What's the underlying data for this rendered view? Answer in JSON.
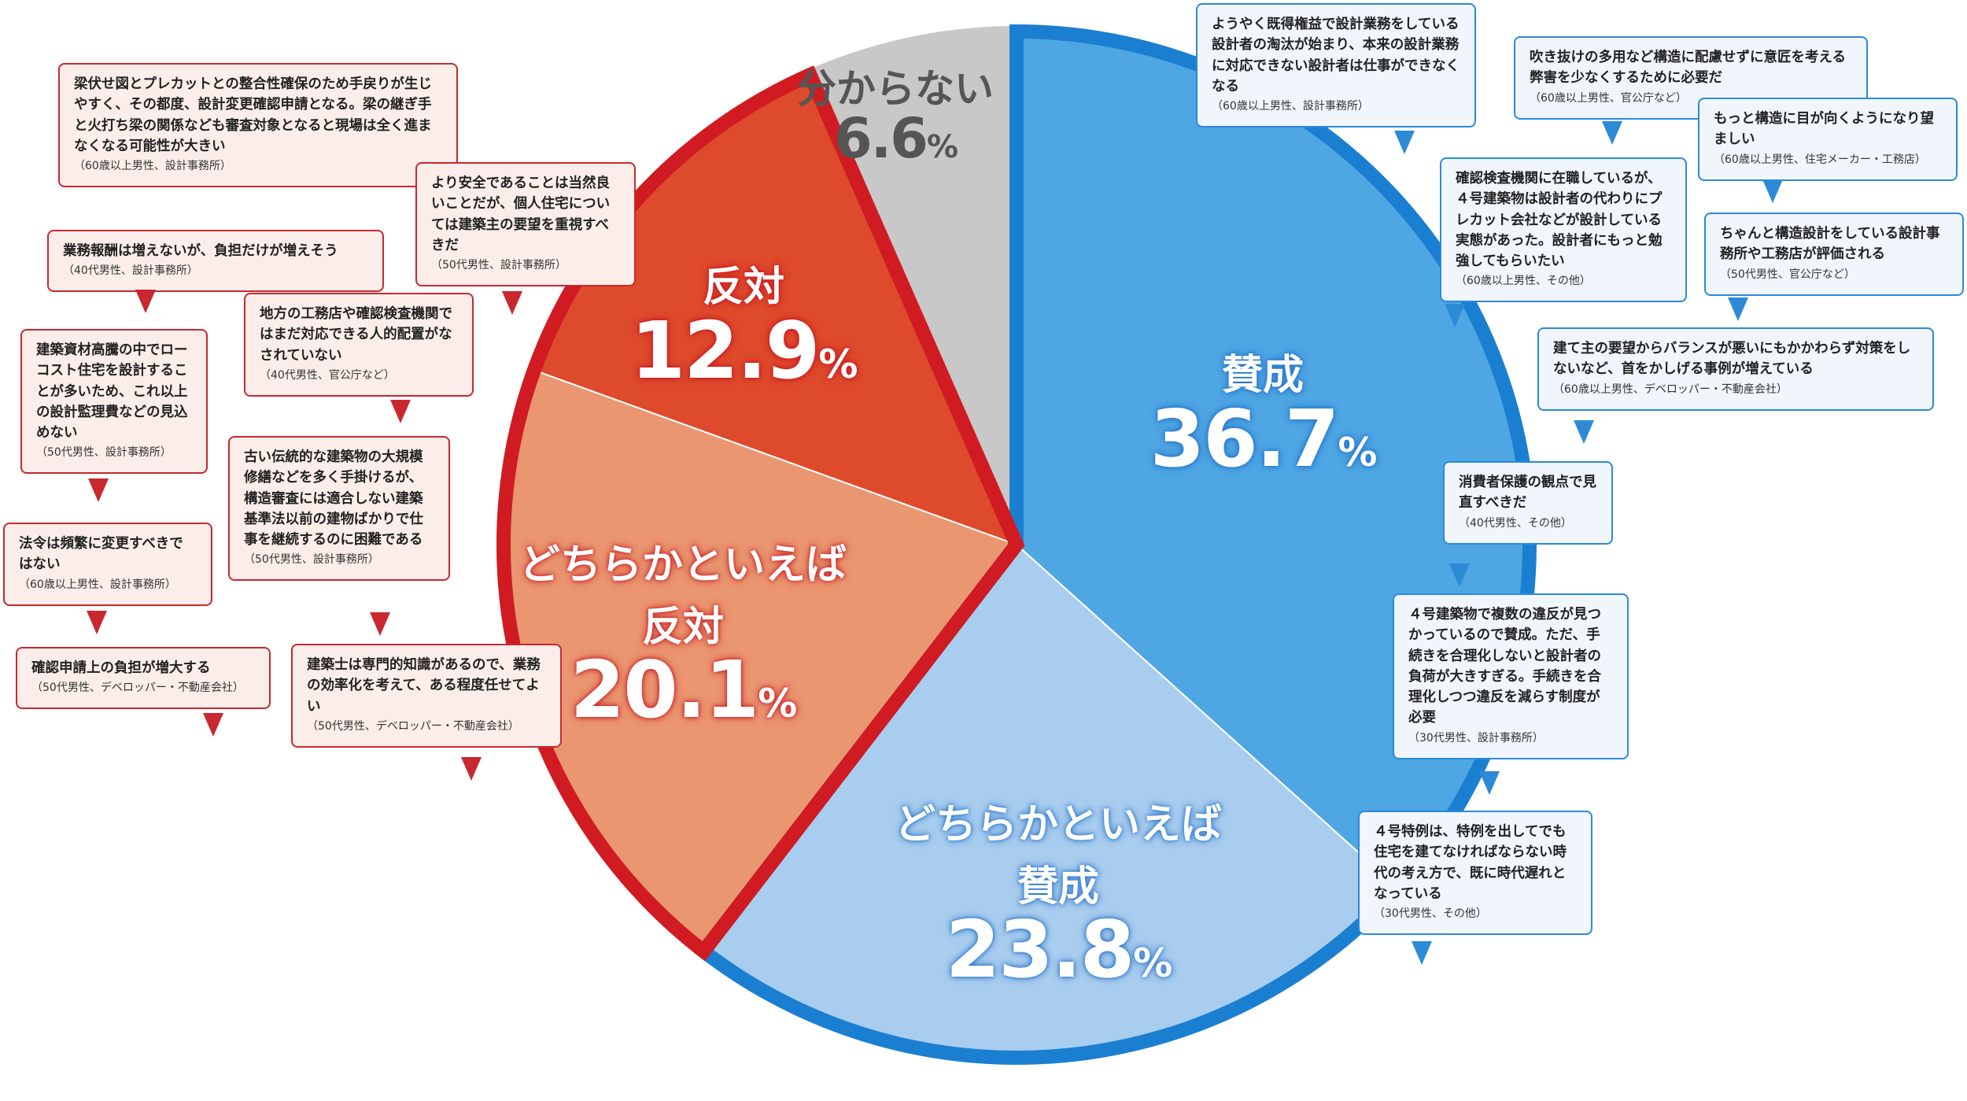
{
  "chart_data": {
    "type": "pie",
    "slices": [
      {
        "category": "賛成",
        "value": 36.7,
        "color": "#4ea6e3"
      },
      {
        "category": "どちらかといえば賛成",
        "value": 23.8,
        "color": "#a9cdee"
      },
      {
        "category": "どちらかといえば反対",
        "value": 20.1,
        "color": "#ea9670"
      },
      {
        "category": "反対",
        "value": 12.9,
        "color": "#de4a2c"
      },
      {
        "category": "分からない",
        "value": 6.6,
        "color": "#c8c8c8"
      }
    ],
    "start": "12 o'clock, clockwise",
    "outer_rings": {
      "agree_group_color": "#1b7fd1",
      "disagree_group_color": "#d01b22"
    }
  },
  "labels": {
    "agree": {
      "cat": "賛成",
      "pct": "36.7",
      "unit": "%"
    },
    "lean_agree": {
      "cat1": "どちらかといえば",
      "cat2": "賛成",
      "pct": "23.8",
      "unit": "%"
    },
    "lean_disagree": {
      "cat1": "どちらかといえば",
      "cat2": "反対",
      "pct": "20.1",
      "unit": "%"
    },
    "disagree": {
      "cat": "反対",
      "pct": "12.9",
      "unit": "%"
    },
    "unknown": {
      "cat": "分からない",
      "pct": "6.6",
      "unit": "%"
    }
  },
  "comments": {
    "blue": [
      {
        "text": "ようやく既得権益で設計業務をしている設計者の淘汰が始まり、本来の設計業務に対応できない設計者は仕事ができなくなる",
        "attr": "（60歳以上男性、設計事務所）"
      },
      {
        "text": "吹き抜けの多用など構造に配慮せずに意匠を考える弊害を少なくするために必要だ",
        "attr": "（60歳以上男性、官公庁など）"
      },
      {
        "text": "もっと構造に目が向くようになり望ましい",
        "attr": "（60歳以上男性、住宅メーカー・工務店）"
      },
      {
        "text": "確認検査機関に在職しているが、４号建築物は設計者の代わりにプレカット会社などが設計している実態があった。設計者にもっと勉強してもらいたい",
        "attr": "（60歳以上男性、その他）"
      },
      {
        "text": "ちゃんと構造設計をしている設計事務所や工務店が評価される",
        "attr": "（50代男性、官公庁など）"
      },
      {
        "text": "建て主の要望からバランスが悪いにもかかわらず対策をしないなど、首をかしげる事例が増えている",
        "attr": "（60歳以上男性、デベロッパー・不動産会社）"
      },
      {
        "text": "消費者保護の観点で見直すべきだ",
        "attr": "（40代男性、その他）"
      },
      {
        "text": "４号建築物で複数の違反が見つかっているので賛成。ただ、手続きを合理化しないと設計者の負荷が大きすぎる。手続きを合理化しつつ違反を減らす制度が必要",
        "attr": "（30代男性、設計事務所）"
      },
      {
        "text": "４号特例は、特例を出してでも住宅を建てなければならない時代の考え方で、既に時代遅れとなっている",
        "attr": "（30代男性、その他）"
      }
    ],
    "red": [
      {
        "text": "梁伏せ図とプレカットとの整合性確保のため手戻りが生じやすく、その都度、設計変更確認申請となる。梁の継ぎ手と火打ち梁の関係なども審査対象となると現場は全く進まなくなる可能性が大きい",
        "attr": "（60歳以上男性、設計事務所）"
      },
      {
        "text": "より安全であることは当然良いことだが、個人住宅については建築主の要望を重視すべきだ",
        "attr": "（50代男性、設計事務所）"
      },
      {
        "text": "業務報酬は増えないが、負担だけが増えそう",
        "attr": "（40代男性、設計事務所）"
      },
      {
        "text": "地方の工務店や確認検査機関ではまだ対応できる人的配置がなされていない",
        "attr": "（40代男性、官公庁など）"
      },
      {
        "text": "建築資材高騰の中でローコスト住宅を設計することが多いため、これ以上の設計監理費などの見込めない",
        "attr": "（50代男性、設計事務所）"
      },
      {
        "text": "古い伝統的な建築物の大規模修繕などを多く手掛けるが、構造審査には適合しない建築基準法以前の建物ばかりで仕事を継続するのに困難である",
        "attr": "（50代男性、設計事務所）"
      },
      {
        "text": "法令は頻繁に変更すべきではない",
        "attr": "（60歳以上男性、設計事務所）"
      },
      {
        "text": "確認申請上の負担が増大する",
        "attr": "（50代男性、デベロッパー・不動産会社）"
      },
      {
        "text": "建築士は専門的知識があるので、業務の効率化を考えて、ある程度任せてよい",
        "attr": "（50代男性、デベロッパー・不動産会社）"
      }
    ]
  }
}
